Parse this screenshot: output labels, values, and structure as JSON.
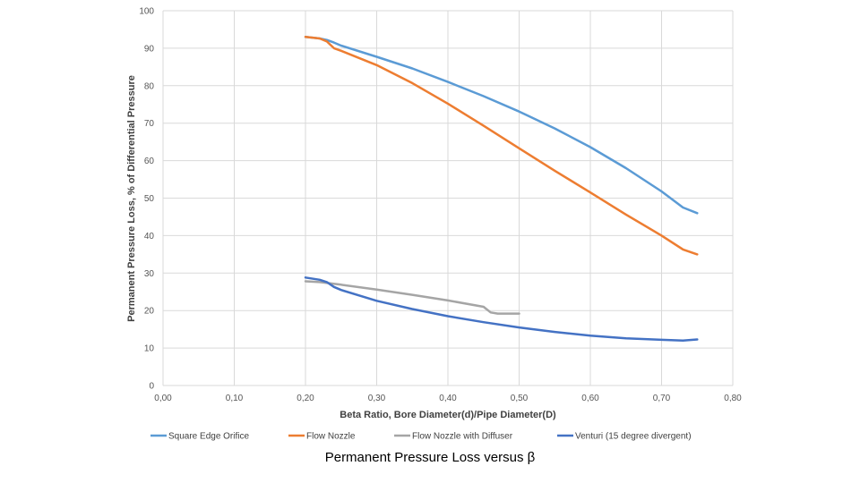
{
  "chart_data": {
    "type": "line",
    "title": "Permanent Pressure Loss versus β",
    "xlabel": "Beta Ratio, Bore Diameter(d)/Pipe Diameter(D)",
    "ylabel": "Permanent Pressure Loss, % of Differential Pressure",
    "xlim": [
      0,
      0.8
    ],
    "ylim": [
      0,
      100
    ],
    "x_ticks": [
      "0,00",
      "0,10",
      "0,20",
      "0,30",
      "0,40",
      "0,50",
      "0,60",
      "0,70",
      "0,80"
    ],
    "y_ticks": [
      "0",
      "10",
      "20",
      "30",
      "40",
      "50",
      "60",
      "70",
      "80",
      "90",
      "100"
    ],
    "grid": "horizontal and vertical",
    "legend_position": "bottom",
    "series": [
      {
        "name": "Square Edge Orifice",
        "color": "#5B9BD5",
        "points": [
          [
            0.2,
            93
          ],
          [
            0.22,
            92.6
          ],
          [
            0.23,
            92.2
          ],
          [
            0.24,
            91.5
          ],
          [
            0.25,
            90.7
          ],
          [
            0.3,
            87.7
          ],
          [
            0.35,
            84.6
          ],
          [
            0.4,
            81
          ],
          [
            0.45,
            77.2
          ],
          [
            0.5,
            73.1
          ],
          [
            0.55,
            68.6
          ],
          [
            0.6,
            63.6
          ],
          [
            0.65,
            58
          ],
          [
            0.7,
            51.8
          ],
          [
            0.73,
            47.5
          ],
          [
            0.75,
            46
          ]
        ]
      },
      {
        "name": "Flow Nozzle",
        "color": "#ED7D31",
        "points": [
          [
            0.2,
            93
          ],
          [
            0.22,
            92.6
          ],
          [
            0.23,
            91.8
          ],
          [
            0.24,
            90
          ],
          [
            0.25,
            89.3
          ],
          [
            0.3,
            85.5
          ],
          [
            0.35,
            80.7
          ],
          [
            0.4,
            75.2
          ],
          [
            0.45,
            69.3
          ],
          [
            0.5,
            63.3
          ],
          [
            0.55,
            57.3
          ],
          [
            0.6,
            51.5
          ],
          [
            0.65,
            45.6
          ],
          [
            0.7,
            40
          ],
          [
            0.73,
            36.3
          ],
          [
            0.75,
            35
          ]
        ]
      },
      {
        "name": "Flow Nozzle with Diffuser",
        "color": "#A5A5A5",
        "points": [
          [
            0.2,
            27.8
          ],
          [
            0.22,
            27.6
          ],
          [
            0.25,
            26.9
          ],
          [
            0.3,
            25.6
          ],
          [
            0.35,
            24.2
          ],
          [
            0.4,
            22.7
          ],
          [
            0.45,
            21
          ],
          [
            0.46,
            19.5
          ],
          [
            0.47,
            19.2
          ],
          [
            0.5,
            19.2
          ]
        ]
      },
      {
        "name": "Venturi (15 degree divergent)",
        "color": "#4472C4",
        "points": [
          [
            0.2,
            28.8
          ],
          [
            0.22,
            28.2
          ],
          [
            0.23,
            27.6
          ],
          [
            0.24,
            26.3
          ],
          [
            0.25,
            25.5
          ],
          [
            0.3,
            22.6
          ],
          [
            0.35,
            20.4
          ],
          [
            0.4,
            18.5
          ],
          [
            0.45,
            16.9
          ],
          [
            0.5,
            15.5
          ],
          [
            0.55,
            14.3
          ],
          [
            0.6,
            13.3
          ],
          [
            0.65,
            12.6
          ],
          [
            0.7,
            12.2
          ],
          [
            0.73,
            12
          ],
          [
            0.75,
            12.3
          ]
        ]
      }
    ]
  }
}
